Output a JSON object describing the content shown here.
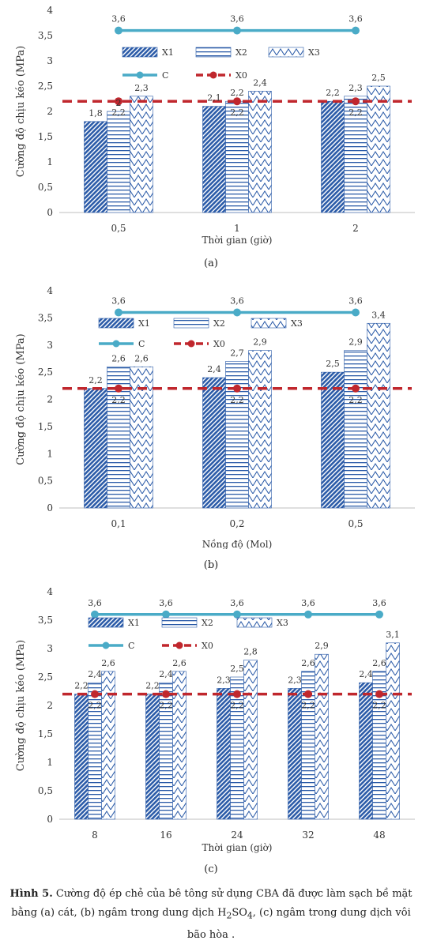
{
  "caption": {
    "label": "Hình 5.",
    "text_a": " Cường độ ép chẻ của bê tông sử dụng CBA đã được làm sạch bề mặt bằng (a) cát, (b) ngâm trong dung dịch H",
    "sub2": "2",
    "so": "SO",
    "sub4": "4",
    "text_b": ", (c) ngâm trong dung dịch vôi bão hòa ."
  },
  "legend": {
    "x1": "X1",
    "x2": "X2",
    "x3": "X3",
    "c": "C",
    "x0": "X0"
  },
  "colors": {
    "bar_pattern": "#2b5ba8",
    "line_c": "#4aabc7",
    "line_x0": "#c0272d"
  },
  "chart_data": [
    {
      "type": "bar",
      "panel": "(a)",
      "categories": [
        "0,5",
        "1",
        "2"
      ],
      "series": [
        {
          "name": "X1",
          "values": [
            1.8,
            2.1,
            2.2
          ]
        },
        {
          "name": "X2",
          "values": [
            2.0,
            2.2,
            2.3
          ]
        },
        {
          "name": "X3",
          "values": [
            2.3,
            2.4,
            2.5
          ]
        },
        {
          "name": "C",
          "values": [
            3.6,
            3.6,
            3.6
          ]
        },
        {
          "name": "X0",
          "values": [
            2.2,
            2.2,
            2.2
          ]
        }
      ],
      "value_labels": {
        "X1": [
          "1,8",
          "2,1",
          "2,2"
        ],
        "X2": [
          "2",
          "2,2",
          "2,3"
        ],
        "X3": [
          "2,3",
          "2,4",
          "2,5"
        ],
        "C": [
          "3,6",
          "3,6",
          "3,6"
        ],
        "X0": [
          "2,2",
          "2,2",
          "2,2"
        ]
      },
      "xlabel": "Thời gian (giờ)",
      "ylabel": "Cường độ chịu kéo (MPa)",
      "ylim": [
        0,
        4
      ],
      "yticks": [
        "0",
        "0,5",
        "1",
        "1,5",
        "2",
        "2,5",
        "3",
        "3,5",
        "4"
      ],
      "grid": false
    },
    {
      "type": "bar",
      "panel": "(b)",
      "categories": [
        "0,1",
        "0,2",
        "0,5"
      ],
      "series": [
        {
          "name": "X1",
          "values": [
            2.2,
            2.4,
            2.5
          ]
        },
        {
          "name": "X2",
          "values": [
            2.6,
            2.7,
            2.9
          ]
        },
        {
          "name": "X3",
          "values": [
            2.6,
            2.9,
            3.4
          ]
        },
        {
          "name": "C",
          "values": [
            3.6,
            3.6,
            3.6
          ]
        },
        {
          "name": "X0",
          "values": [
            2.2,
            2.2,
            2.2
          ]
        }
      ],
      "value_labels": {
        "X1": [
          "2,2",
          "2,4",
          "2,5"
        ],
        "X2": [
          "2,6",
          "2,7",
          "2,9"
        ],
        "X3": [
          "2,6",
          "2,9",
          "3,4"
        ],
        "C": [
          "3,6",
          "3,6",
          "3,6"
        ],
        "X0": [
          "2,2",
          "2,2",
          "2,2"
        ]
      },
      "xlabel": "Nồng độ (Mol)",
      "ylabel": "Cường độ chịu kéo (MPa)",
      "ylim": [
        0,
        4
      ],
      "yticks": [
        "0",
        "0,5",
        "1",
        "1,5",
        "2",
        "2,5",
        "3",
        "3,5",
        "4"
      ],
      "grid": false
    },
    {
      "type": "bar",
      "panel": "(c)",
      "categories": [
        "8",
        "16",
        "24",
        "32",
        "48"
      ],
      "series": [
        {
          "name": "X1",
          "values": [
            2.2,
            2.2,
            2.3,
            2.3,
            2.4
          ]
        },
        {
          "name": "X2",
          "values": [
            2.4,
            2.4,
            2.5,
            2.6,
            2.6
          ]
        },
        {
          "name": "X3",
          "values": [
            2.6,
            2.6,
            2.8,
            2.9,
            3.1
          ]
        },
        {
          "name": "C",
          "values": [
            3.6,
            3.6,
            3.6,
            3.6,
            3.6
          ]
        },
        {
          "name": "X0",
          "values": [
            2.2,
            2.2,
            2.2,
            2.2,
            2.2
          ]
        }
      ],
      "value_labels": {
        "X1": [
          "2,2",
          "2,2",
          "2,3",
          "2,3",
          "2,4"
        ],
        "X2": [
          "2,4",
          "2,4",
          "2,5",
          "2,6",
          "2,6"
        ],
        "X3": [
          "2,6",
          "2,6",
          "2,8",
          "2,9",
          "3,1"
        ],
        "C": [
          "3,6",
          "3,6",
          "3,6",
          "3,6",
          "3,6"
        ],
        "X0": [
          "2,2",
          "2,2",
          "2,2",
          "2,2",
          "2,2"
        ]
      },
      "xlabel": "Thời gian (giờ)",
      "ylabel": "Cường độ chịu kéo (MPa)",
      "ylim": [
        0,
        4
      ],
      "yticks": [
        "0",
        "0,5",
        "1",
        "1,5",
        "2",
        "2,5",
        "3",
        "3,5",
        "4"
      ],
      "grid": false
    }
  ]
}
